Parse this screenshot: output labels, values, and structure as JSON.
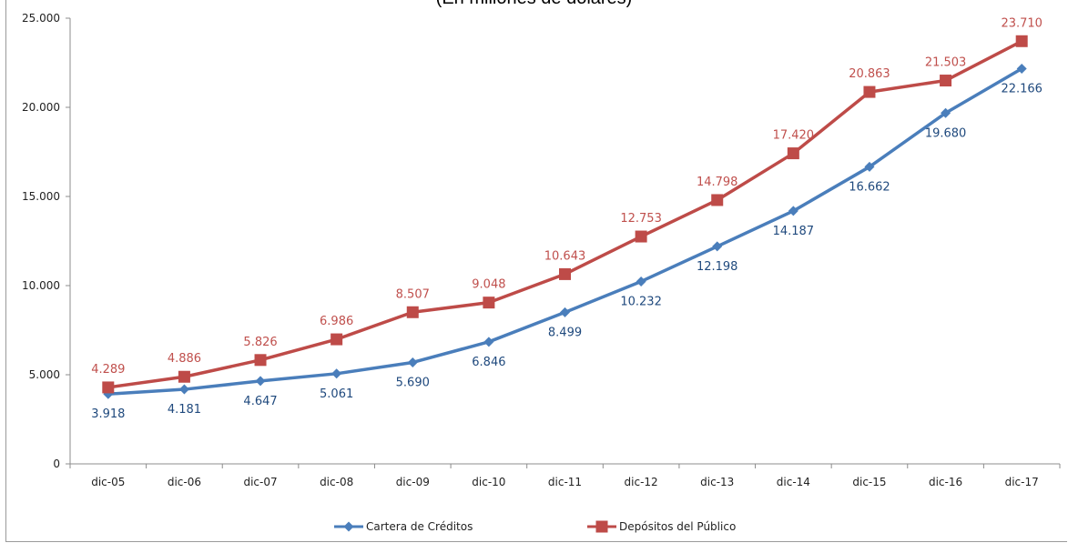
{
  "chart_data": {
    "type": "line",
    "subtitle": "(En millones de dólares)",
    "categories": [
      "dic-05",
      "dic-06",
      "dic-07",
      "dic-08",
      "dic-09",
      "dic-10",
      "dic-11",
      "dic-12",
      "dic-13",
      "dic-14",
      "dic-15",
      "dic-16",
      "dic-17"
    ],
    "series": [
      {
        "name": "Cartera de Créditos",
        "color": "#4a7ebb",
        "marker": "diamond",
        "values": [
          3918,
          4181,
          4647,
          5061,
          5690,
          6846,
          8499,
          10232,
          12198,
          14187,
          16662,
          19680,
          22166
        ],
        "labels": [
          "3.918",
          "4.181",
          "4.647",
          "5.061",
          "5.690",
          "6.846",
          "8.499",
          "10.232",
          "12.198",
          "14.187",
          "16.662",
          "19.680",
          "22.166"
        ]
      },
      {
        "name": "Depósitos del Público",
        "color": "#be4b48",
        "marker": "square",
        "values": [
          4289,
          4886,
          5826,
          6986,
          8507,
          9048,
          10643,
          12753,
          14798,
          17420,
          20863,
          21503,
          23710
        ],
        "labels": [
          "4.289",
          "4.886",
          "5.826",
          "6.986",
          "8.507",
          "9.048",
          "10.643",
          "12.753",
          "14.798",
          "17.420",
          "20.863",
          "21.503",
          "23.710"
        ]
      }
    ],
    "ylim": [
      0,
      25000
    ],
    "yticks": [
      0,
      5000,
      10000,
      15000,
      20000,
      25000
    ],
    "ytick_labels": [
      "0",
      "5.000",
      "10.000",
      "15.000",
      "20.000",
      "25.000"
    ],
    "legend_position": "bottom",
    "grid": false
  }
}
